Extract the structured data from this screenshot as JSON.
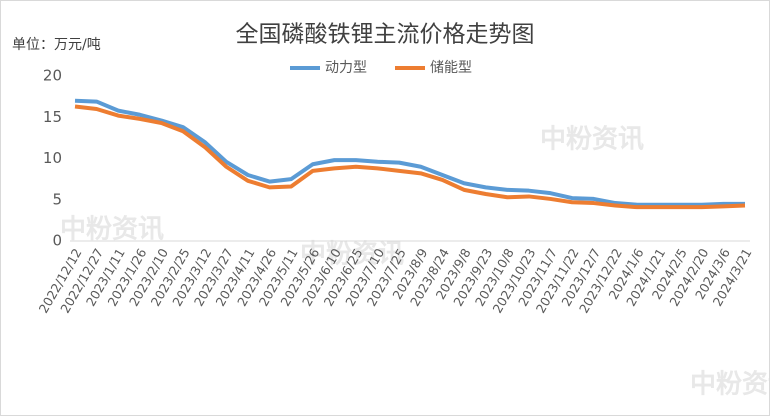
{
  "chart_data": {
    "type": "line",
    "title": "全国磷酸铁锂主流价格走势图",
    "y_axis_label": "单位：万元/吨",
    "watermark": "中粉资讯",
    "categories": [
      "2022/12/12",
      "2022/12/27",
      "2023/1/11",
      "2023/1/26",
      "2023/2/10",
      "2023/2/25",
      "2023/3/12",
      "2023/3/27",
      "2023/4/11",
      "2023/4/26",
      "2023/5/11",
      "2023/5/26",
      "2023/6/10",
      "2023/6/25",
      "2023/7/10",
      "2023/7/25",
      "2023/8/9",
      "2023/8/24",
      "2023/9/8",
      "2023/9/23",
      "2023/10/8",
      "2023/10/23",
      "2023/11/7",
      "2023/11/22",
      "2023/12/7",
      "2023/12/22",
      "2024/1/6",
      "2024/1/21",
      "2024/2/5",
      "2024/2/20",
      "2024/3/6",
      "2024/3/21"
    ],
    "series": [
      {
        "name": "动力型",
        "color": "#5b9bd5",
        "values": [
          17.0,
          16.9,
          15.8,
          15.3,
          14.6,
          13.8,
          12.0,
          9.6,
          8.0,
          7.2,
          7.5,
          9.3,
          9.8,
          9.8,
          9.6,
          9.5,
          9.0,
          8.0,
          7.0,
          6.5,
          6.2,
          6.1,
          5.8,
          5.2,
          5.1,
          4.6,
          4.4,
          4.4,
          4.4,
          4.4,
          4.5,
          4.5
        ]
      },
      {
        "name": "储能型",
        "color": "#ed7d31",
        "values": [
          16.3,
          16.0,
          15.2,
          14.8,
          14.3,
          13.3,
          11.4,
          9.0,
          7.3,
          6.5,
          6.6,
          8.5,
          8.8,
          9.0,
          8.8,
          8.5,
          8.2,
          7.4,
          6.2,
          5.7,
          5.3,
          5.4,
          5.1,
          4.7,
          4.6,
          4.3,
          4.1,
          4.1,
          4.1,
          4.1,
          4.2,
          4.3
        ]
      }
    ],
    "ylim": [
      0,
      20
    ],
    "yticks": [
      0,
      5,
      10,
      15,
      20
    ],
    "grid": false,
    "legend": "top"
  }
}
